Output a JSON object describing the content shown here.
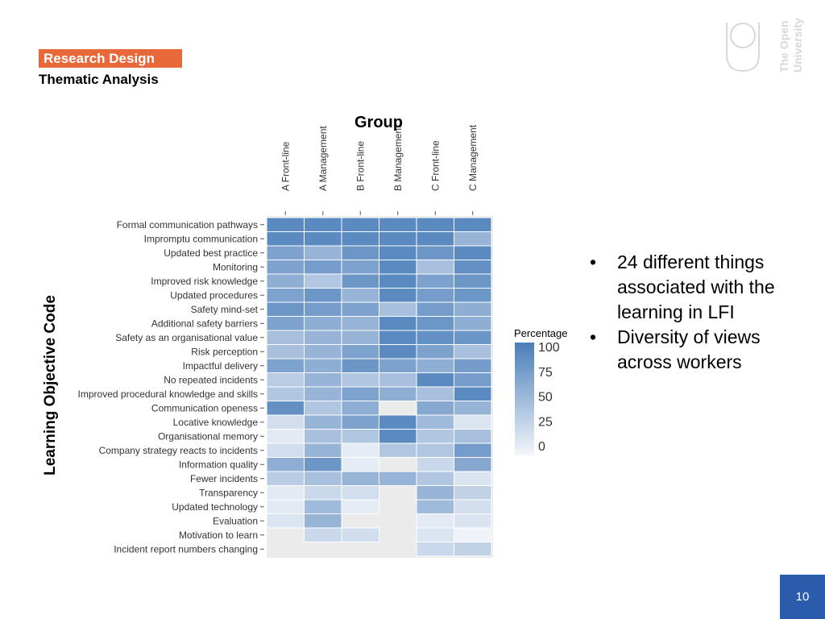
{
  "header": {
    "section_label": "Research Design",
    "subtitle": "Thematic Analysis"
  },
  "logo": {
    "name": "The Open University",
    "icon": "open-university-logo"
  },
  "bullets": [
    "24 different things associated with the learning in LFI",
    "Diversity of views across workers"
  ],
  "page_number": "10",
  "colors": {
    "low": "#f4f6fb",
    "high": "#4a7eb9",
    "accent": "#e8683a",
    "footer": "#2b5bab"
  },
  "chart_data": {
    "type": "heatmap",
    "title": "Group",
    "ylabel": "Learning Objective Code",
    "legend_title": "Percentage",
    "legend_ticks": [
      "100",
      "75",
      "50",
      "25",
      "0"
    ],
    "legend_placement": "right",
    "value_range": [
      0,
      100
    ],
    "x": [
      "A Front-line",
      "A Management",
      "B Front-line",
      "B Management",
      "C Front-line",
      "C Management"
    ],
    "y": [
      "Formal communication pathways",
      "Impromptu communication",
      "Updated best practice",
      "Monitoring",
      "Improved risk knowledge",
      "Updated procedures",
      "Safety mind-set",
      "Additional safety barriers",
      "Safety as an organisational value",
      "Risk perception",
      "Impactful delivery",
      "No repeated incidents",
      "Improved procedural knowledge and skills",
      "Communication openess",
      "Locative knowledge",
      "Organisational memory",
      "Company strategy reacts to incidents",
      "Information quality",
      "Fewer incidents",
      "Transparency",
      "Updated technology",
      "Evaluation",
      "Motivation to learn",
      "Incident report numbers changing"
    ],
    "values": [
      [
        90,
        90,
        90,
        90,
        90,
        90
      ],
      [
        90,
        90,
        90,
        90,
        90,
        55
      ],
      [
        70,
        55,
        80,
        90,
        80,
        90
      ],
      [
        70,
        75,
        70,
        90,
        45,
        85
      ],
      [
        60,
        40,
        80,
        90,
        70,
        80
      ],
      [
        70,
        80,
        55,
        90,
        75,
        80
      ],
      [
        80,
        75,
        70,
        45,
        75,
        60
      ],
      [
        70,
        60,
        55,
        90,
        80,
        60
      ],
      [
        45,
        55,
        55,
        90,
        85,
        80
      ],
      [
        45,
        55,
        70,
        90,
        70,
        45
      ],
      [
        70,
        60,
        80,
        70,
        60,
        75
      ],
      [
        35,
        55,
        40,
        45,
        90,
        75
      ],
      [
        40,
        55,
        70,
        60,
        45,
        90
      ],
      [
        85,
        40,
        60,
        null,
        65,
        55
      ],
      [
        20,
        55,
        70,
        90,
        50,
        15
      ],
      [
        10,
        45,
        40,
        90,
        40,
        45
      ],
      [
        20,
        55,
        8,
        40,
        40,
        75
      ],
      [
        60,
        80,
        8,
        null,
        25,
        65
      ],
      [
        35,
        45,
        55,
        55,
        40,
        15
      ],
      [
        10,
        25,
        20,
        null,
        55,
        30
      ],
      [
        10,
        50,
        8,
        null,
        50,
        20
      ],
      [
        15,
        55,
        null,
        null,
        10,
        15
      ],
      [
        null,
        25,
        20,
        null,
        15,
        3
      ],
      [
        null,
        null,
        null,
        null,
        25,
        30
      ]
    ]
  }
}
